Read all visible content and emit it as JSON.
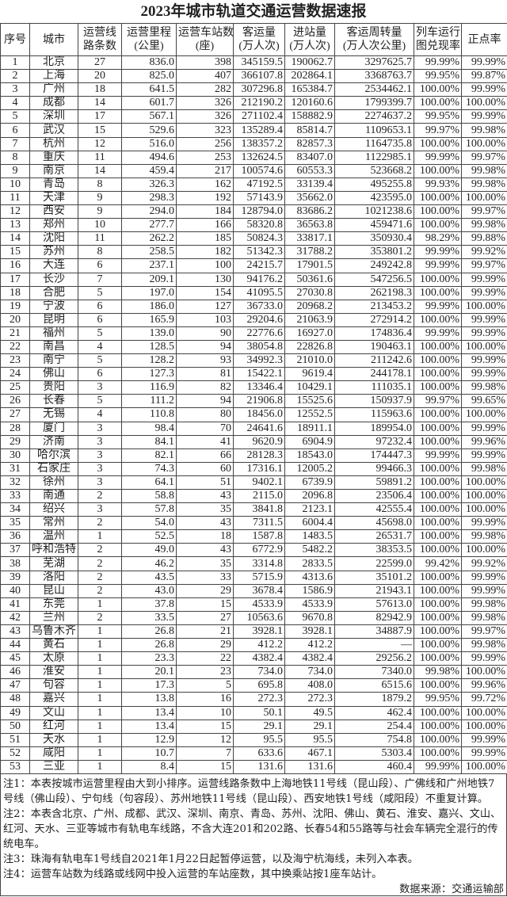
{
  "title": "2023年城市轨道交通运营数据速报",
  "headers": [
    [
      "序号"
    ],
    [
      "城市"
    ],
    [
      "运营线",
      "路条数"
    ],
    [
      "运营里程",
      "(公里)"
    ],
    [
      "运营车站数",
      "(座)"
    ],
    [
      "客运量",
      "(万人次)"
    ],
    [
      "进站量",
      "(万人次)"
    ],
    [
      "客运周转量",
      "(万人次公里)"
    ],
    [
      "列车运行",
      "图兑现率"
    ],
    [
      "正点率"
    ]
  ],
  "rows": [
    [
      "1",
      "北京",
      "27",
      "836.0",
      "398",
      "345159.5",
      "190062.7",
      "3297625.7",
      "99.99%",
      "99.99%"
    ],
    [
      "2",
      "上海",
      "20",
      "825.0",
      "407",
      "366107.8",
      "202864.1",
      "3368763.7",
      "99.95%",
      "99.87%"
    ],
    [
      "3",
      "广州",
      "18",
      "641.5",
      "282",
      "307296.8",
      "165384.7",
      "2534462.1",
      "100.00%",
      "99.99%"
    ],
    [
      "4",
      "成都",
      "14",
      "601.7",
      "326",
      "212190.2",
      "120160.6",
      "1799399.7",
      "100.00%",
      "100.00%"
    ],
    [
      "5",
      "深圳",
      "17",
      "567.1",
      "326",
      "271102.4",
      "158882.9",
      "2274637.2",
      "99.95%",
      "99.99%"
    ],
    [
      "6",
      "武汉",
      "15",
      "529.6",
      "323",
      "135289.4",
      "85814.7",
      "1109653.1",
      "99.97%",
      "99.98%"
    ],
    [
      "7",
      "杭州",
      "12",
      "516.0",
      "256",
      "138357.2",
      "82857.3",
      "1164735.8",
      "100.00%",
      "100.00%"
    ],
    [
      "8",
      "重庆",
      "11",
      "494.6",
      "253",
      "132624.5",
      "83407.0",
      "1122985.1",
      "99.99%",
      "99.97%"
    ],
    [
      "9",
      "南京",
      "14",
      "459.4",
      "217",
      "100574.6",
      "60553.3",
      "523668.2",
      "100.00%",
      "99.98%"
    ],
    [
      "10",
      "青岛",
      "8",
      "326.3",
      "162",
      "47192.5",
      "33139.4",
      "495255.8",
      "99.93%",
      "99.98%"
    ],
    [
      "11",
      "天津",
      "9",
      "298.3",
      "192",
      "57143.9",
      "35662.0",
      "423595.0",
      "100.00%",
      "100.00%"
    ],
    [
      "12",
      "西安",
      "9",
      "294.0",
      "184",
      "128794.0",
      "83686.2",
      "1021238.6",
      "100.00%",
      "99.97%"
    ],
    [
      "13",
      "郑州",
      "10",
      "277.7",
      "166",
      "58320.8",
      "36563.8",
      "459471.6",
      "100.00%",
      "99.98%"
    ],
    [
      "14",
      "沈阳",
      "11",
      "262.2",
      "185",
      "50824.3",
      "33817.1",
      "350930.4",
      "98.29%",
      "99.88%"
    ],
    [
      "15",
      "苏州",
      "8",
      "258.5",
      "182",
      "51342.3",
      "31788.2",
      "353801.2",
      "99.99%",
      "99.92%"
    ],
    [
      "16",
      "大连",
      "6",
      "237.1",
      "100",
      "24215.7",
      "17901.5",
      "249242.8",
      "99.99%",
      "99.97%"
    ],
    [
      "17",
      "长沙",
      "7",
      "209.1",
      "130",
      "94176.2",
      "50361.6",
      "547256.5",
      "100.00%",
      "99.99%"
    ],
    [
      "18",
      "合肥",
      "5",
      "197.0",
      "154",
      "41095.5",
      "27030.8",
      "262198.3",
      "100.00%",
      "99.99%"
    ],
    [
      "19",
      "宁波",
      "6",
      "186.0",
      "127",
      "36733.0",
      "20968.2",
      "213453.2",
      "99.99%",
      "100.00%"
    ],
    [
      "20",
      "昆明",
      "6",
      "165.9",
      "103",
      "29204.6",
      "21063.9",
      "272914.2",
      "100.00%",
      "99.99%"
    ],
    [
      "21",
      "福州",
      "5",
      "139.0",
      "90",
      "22776.6",
      "16927.0",
      "174836.4",
      "99.99%",
      "99.99%"
    ],
    [
      "22",
      "南昌",
      "4",
      "128.5",
      "94",
      "38054.8",
      "22826.8",
      "190463.1",
      "100.00%",
      "100.00%"
    ],
    [
      "23",
      "南宁",
      "5",
      "128.2",
      "93",
      "34992.3",
      "21010.0",
      "211242.6",
      "100.00%",
      "99.99%"
    ],
    [
      "24",
      "佛山",
      "6",
      "127.3",
      "81",
      "15422.1",
      "9619.4",
      "244178.1",
      "100.00%",
      "99.99%"
    ],
    [
      "25",
      "贵阳",
      "3",
      "116.9",
      "82",
      "13346.4",
      "10429.1",
      "111035.1",
      "100.00%",
      "99.98%"
    ],
    [
      "26",
      "长春",
      "5",
      "111.2",
      "94",
      "21906.8",
      "15525.6",
      "150937.9",
      "99.97%",
      "99.65%"
    ],
    [
      "27",
      "无锡",
      "4",
      "110.8",
      "80",
      "18456.0",
      "12552.5",
      "115963.6",
      "100.00%",
      "100.00%"
    ],
    [
      "28",
      "厦门",
      "3",
      "98.4",
      "70",
      "24641.6",
      "18911.1",
      "189954.0",
      "100.00%",
      "99.99%"
    ],
    [
      "29",
      "济南",
      "3",
      "84.1",
      "41",
      "9620.9",
      "6904.9",
      "97232.4",
      "100.00%",
      "99.96%"
    ],
    [
      "30",
      "哈尔滨",
      "3",
      "82.1",
      "66",
      "28128.3",
      "18543.0",
      "174447.3",
      "99.99%",
      "99.99%"
    ],
    [
      "31",
      "石家庄",
      "3",
      "74.3",
      "60",
      "17316.1",
      "12005.2",
      "99466.3",
      "100.00%",
      "99.98%"
    ],
    [
      "32",
      "徐州",
      "3",
      "64.1",
      "51",
      "9402.1",
      "6739.9",
      "59891.2",
      "100.00%",
      "100.00%"
    ],
    [
      "33",
      "南通",
      "2",
      "58.8",
      "43",
      "2115.0",
      "2096.8",
      "23506.4",
      "100.00%",
      "100.00%"
    ],
    [
      "34",
      "绍兴",
      "3",
      "57.8",
      "35",
      "3841.8",
      "2123.1",
      "42555.4",
      "100.00%",
      "100.00%"
    ],
    [
      "35",
      "常州",
      "2",
      "54.0",
      "43",
      "7311.5",
      "6004.4",
      "45698.0",
      "100.00%",
      "99.99%"
    ],
    [
      "36",
      "温州",
      "1",
      "52.5",
      "18",
      "1587.8",
      "1483.5",
      "26531.7",
      "100.00%",
      "99.98%"
    ],
    [
      "37",
      "呼和浩特",
      "2",
      "49.0",
      "43",
      "6772.9",
      "5482.2",
      "38353.5",
      "100.00%",
      "100.00%"
    ],
    [
      "38",
      "芜湖",
      "2",
      "46.2",
      "35",
      "3314.8",
      "2833.5",
      "22599.0",
      "99.42%",
      "99.92%"
    ],
    [
      "39",
      "洛阳",
      "2",
      "43.5",
      "33",
      "5715.9",
      "4313.6",
      "35101.2",
      "100.00%",
      "99.99%"
    ],
    [
      "40",
      "昆山",
      "2",
      "43.0",
      "29",
      "3678.4",
      "1586.9",
      "21943.1",
      "100.00%",
      "99.99%"
    ],
    [
      "41",
      "东莞",
      "1",
      "37.8",
      "15",
      "4533.9",
      "4533.9",
      "57613.0",
      "100.00%",
      "99.98%"
    ],
    [
      "42",
      "兰州",
      "2",
      "33.5",
      "27",
      "10563.6",
      "9670.8",
      "82942.9",
      "100.00%",
      "99.98%"
    ],
    [
      "43",
      "乌鲁木齐",
      "1",
      "26.8",
      "21",
      "3928.1",
      "3928.1",
      "34887.9",
      "100.00%",
      "99.97%"
    ],
    [
      "44",
      "黄石",
      "1",
      "26.8",
      "29",
      "412.2",
      "412.2",
      "—",
      "100.00%",
      "99.98%"
    ],
    [
      "45",
      "太原",
      "1",
      "23.3",
      "22",
      "4382.4",
      "4382.4",
      "29256.2",
      "100.00%",
      "99.99%"
    ],
    [
      "46",
      "淮安",
      "1",
      "20.1",
      "23",
      "734.0",
      "734.0",
      "7340.0",
      "99.98%",
      "100.00%"
    ],
    [
      "47",
      "句容",
      "1",
      "17.3",
      "5",
      "695.8",
      "408.0",
      "6515.6",
      "100.00%",
      "99.96%"
    ],
    [
      "48",
      "嘉兴",
      "1",
      "13.8",
      "16",
      "272.3",
      "272.3",
      "1879.2",
      "99.95%",
      "99.72%"
    ],
    [
      "49",
      "文山",
      "1",
      "13.4",
      "10",
      "50.1",
      "49.5",
      "462.4",
      "100.00%",
      "100.00%"
    ],
    [
      "50",
      "红河",
      "1",
      "13.4",
      "15",
      "29.1",
      "29.1",
      "254.4",
      "100.00%",
      "100.00%"
    ],
    [
      "51",
      "天水",
      "1",
      "12.9",
      "12",
      "95.5",
      "95.5",
      "754.8",
      "100.00%",
      "99.99%"
    ],
    [
      "52",
      "咸阳",
      "1",
      "10.7",
      "7",
      "633.6",
      "467.1",
      "5303.4",
      "100.00%",
      "99.99%"
    ],
    [
      "53",
      "三亚",
      "1",
      "8.4",
      "15",
      "131.6",
      "131.6",
      "460.4",
      "99.99%",
      "100.00%"
    ]
  ],
  "notes": [
    "注1：本表按城市运营里程由大到小排序。运营线路条数中上海地铁11号线（昆山段）、广佛线和广州地铁7号线（佛山段）、宁句线（句容段）、苏州地铁11号线（昆山段）、西安地铁1号线（咸阳段）不重复计算。",
    "注2：本表含北京、广州、成都、武汉、深圳、南京、青岛、苏州、沈阳、佛山、黄石、淮安、嘉兴、文山、红河、天水、三亚等城市有轨电车线路，不含大连201和202路、长春54和55路等与社会车辆完全混行的传统电车。",
    "注3：珠海有轨电车1号线自2021年1月22日起暂停运营，以及海宁杭海线，未列入本表。",
    "注4：运营车站数为线路或线网中投入运营的车站座数，其中换乘站按1座车站计。"
  ],
  "source": "数据来源：交通运输部"
}
